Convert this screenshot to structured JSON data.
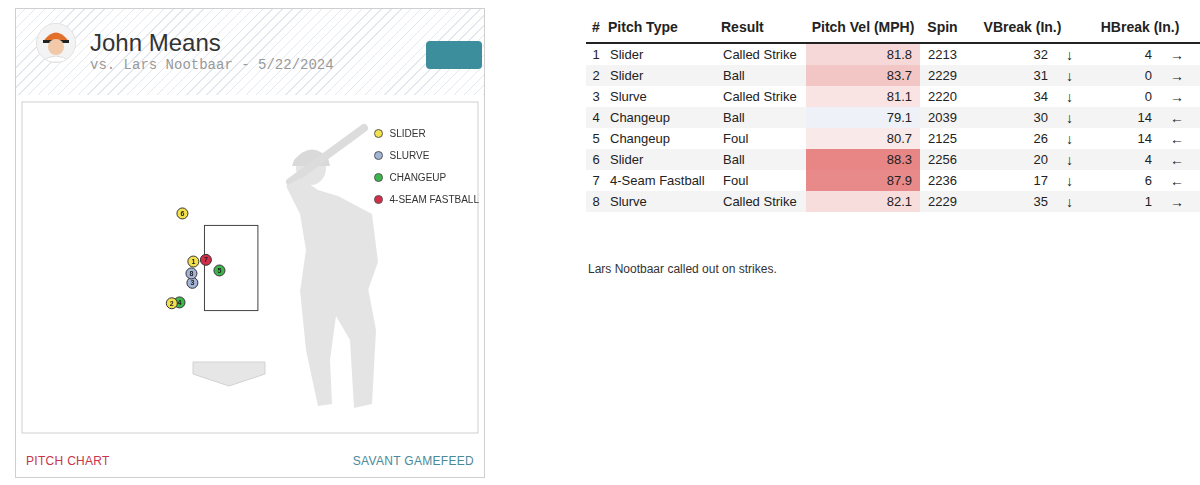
{
  "header": {
    "title": "John Means",
    "subtitle": "vs. Lars Nootbaar - 5/22/2024"
  },
  "chart_data": {
    "type": "scatter",
    "xlim": [
      -6.5,
      7.7
    ],
    "ylim": [
      -1.4,
      6.4
    ],
    "tick_labels": false,
    "grid": false,
    "legend": "upper right",
    "marker": "circle",
    "strike_zone": {
      "x": [
        -0.83,
        0.83
      ],
      "y": [
        1.5,
        3.5
      ]
    },
    "series": [
      {
        "name": "SLIDER",
        "color": "#f2e14c",
        "x": [
          -1.16,
          -1.83,
          -1.5
        ],
        "y": [
          2.64,
          1.66,
          3.77
        ],
        "pitch_numbers": [
          1,
          2,
          6
        ]
      },
      {
        "name": "SLURVE",
        "color": "#a3b5d6",
        "x": [
          -1.19,
          -1.22
        ],
        "y": [
          2.14,
          2.36
        ],
        "pitch_numbers": [
          3,
          8
        ]
      },
      {
        "name": "CHANGEUP",
        "color": "#3cb54a",
        "x": [
          -1.59,
          -0.35
        ],
        "y": [
          1.68,
          2.43
        ],
        "pitch_numbers": [
          4,
          5
        ]
      },
      {
        "name": "4-SEAM FASTBALL",
        "color": "#d22d49",
        "x": [
          -0.77
        ],
        "y": [
          2.68
        ],
        "pitch_numbers": [
          7
        ]
      }
    ]
  },
  "links": [
    "PITCH CHART",
    "SAVANT GAMEFEED"
  ],
  "table": {
    "columns": [
      "#",
      "Pitch Type",
      "Result",
      "Pitch Vel (MPH)",
      "Spin",
      "VBreak (In.)",
      "HBreak (In.)"
    ],
    "rows": [
      [
        1,
        "Slider",
        "Called Strike",
        81.8,
        2213,
        32,
        "↓",
        4,
        "→"
      ],
      [
        2,
        "Slider",
        "Ball",
        83.7,
        2229,
        31,
        "↓",
        0,
        "→"
      ],
      [
        3,
        "Slurve",
        "Called Strike",
        81.1,
        2220,
        34,
        "↓",
        0,
        "→"
      ],
      [
        4,
        "Changeup",
        "Ball",
        79.1,
        2039,
        30,
        "↓",
        14,
        "←"
      ],
      [
        5,
        "Changeup",
        "Foul",
        80.7,
        2125,
        26,
        "↓",
        14,
        "←"
      ],
      [
        6,
        "Slider",
        "Ball",
        88.3,
        2256,
        20,
        "↓",
        4,
        "←"
      ],
      [
        7,
        "4-Seam Fastball",
        "Foul",
        87.9,
        2236,
        17,
        "↓",
        6,
        "←"
      ],
      [
        8,
        "Slurve",
        "Called Strike",
        82.1,
        2229,
        35,
        "↓",
        1,
        "→"
      ]
    ],
    "vel_colors": [
      "#f7d8d8",
      "#f3c6c6",
      "#f9e3e3",
      "#eef1f7",
      "#fae9e9",
      "#e88585",
      "#e98a8a",
      "#f8dddd"
    ]
  },
  "summary": "Lars Nootbaar called out on strikes."
}
